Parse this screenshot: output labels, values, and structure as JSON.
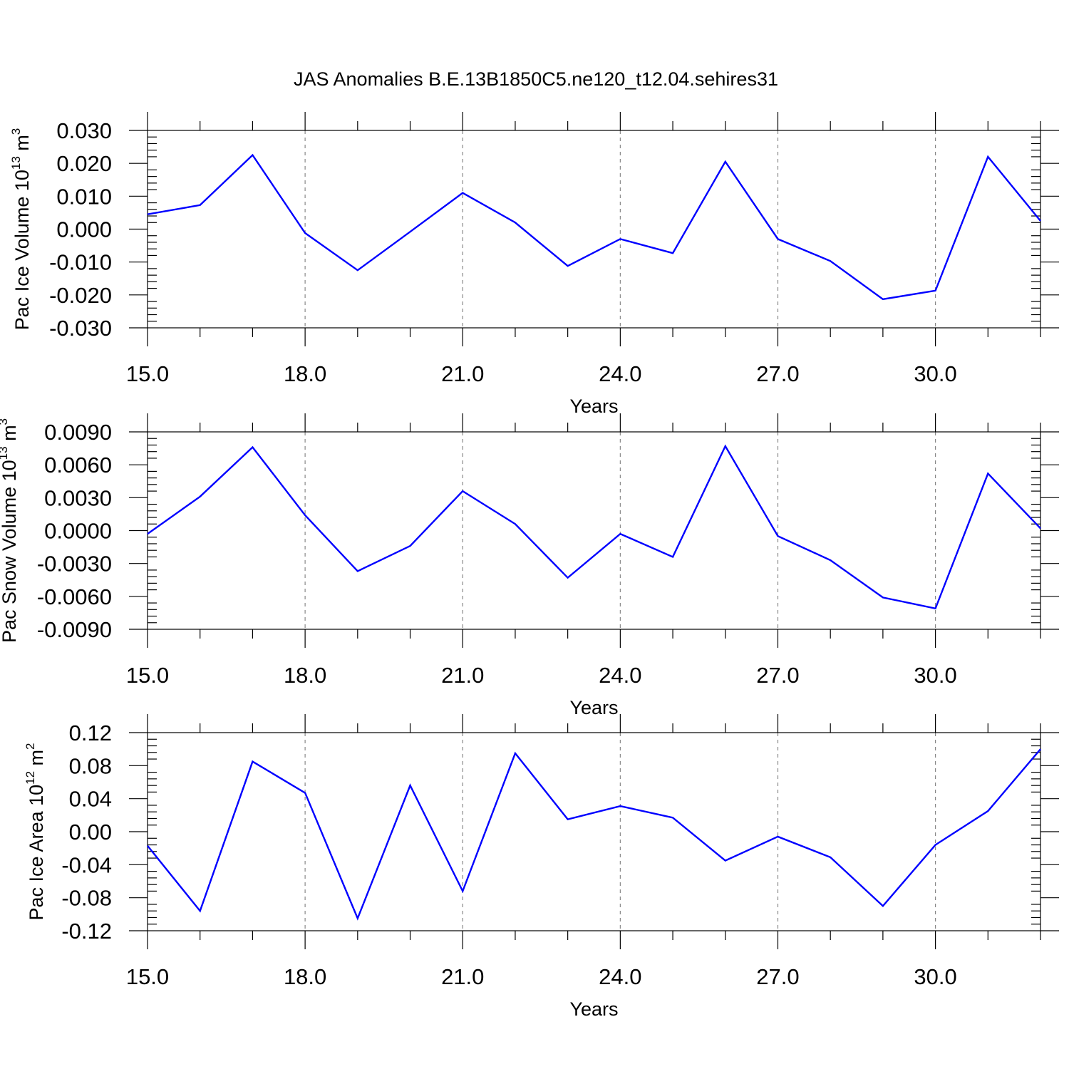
{
  "title": "JAS Anomalies B.E.13B1850C5.ne120_t12.04.sehires31",
  "colors": {
    "line": "#0000ff",
    "grid": "#888888",
    "axes": "#000000"
  },
  "chart_data": [
    {
      "type": "line",
      "id": "ice-volume",
      "ylabel": {
        "text": "Pac Ice Volume 10",
        "sup1": "13",
        "mid": " m",
        "sup2": "3"
      },
      "xlabel": "Years",
      "xlim": [
        15,
        32
      ],
      "ylim": [
        -0.03,
        0.03
      ],
      "x_ticks": [
        "15.0",
        "18.0",
        "21.0",
        "24.0",
        "27.0",
        "30.0"
      ],
      "y_ticks": [
        "-0.030",
        "-0.020",
        "-0.010",
        "0.000",
        "0.010",
        "0.020",
        "0.030"
      ],
      "grid": "vertical dashed at major x ticks",
      "series": [
        {
          "x": [
            15,
            16,
            17,
            18,
            19,
            20,
            21,
            22,
            23,
            24,
            25,
            26,
            27,
            28,
            29,
            30,
            31,
            32
          ],
          "values": [
            0.0045,
            0.0073,
            0.0225,
            -0.0012,
            -0.0125,
            -0.0008,
            0.011,
            0.002,
            -0.0112,
            -0.003,
            -0.0073,
            0.0205,
            -0.003,
            -0.0097,
            -0.0213,
            -0.0187,
            0.022,
            0.0025
          ]
        }
      ]
    },
    {
      "type": "line",
      "id": "snow-volume",
      "ylabel": {
        "text": "Pac Snow Volume 10",
        "sup1": "13",
        "mid": " m",
        "sup2": "3"
      },
      "xlabel": "Years",
      "xlim": [
        15,
        32
      ],
      "ylim": [
        -0.009,
        0.009
      ],
      "x_ticks": [
        "15.0",
        "18.0",
        "21.0",
        "24.0",
        "27.0",
        "30.0"
      ],
      "y_ticks": [
        "-0.0090",
        "-0.0060",
        "-0.0030",
        "0.0000",
        "0.0030",
        "0.0060",
        "0.0090"
      ],
      "grid": "vertical dashed at major x ticks",
      "series": [
        {
          "x": [
            15,
            16,
            17,
            18,
            19,
            20,
            21,
            22,
            23,
            24,
            25,
            26,
            27,
            28,
            29,
            30,
            31,
            32
          ],
          "values": [
            -0.0003,
            0.0031,
            0.0076,
            0.0014,
            -0.0037,
            -0.0014,
            0.0036,
            0.0006,
            -0.0043,
            -0.0003,
            -0.0024,
            0.0077,
            -0.0005,
            -0.0027,
            -0.0061,
            -0.0071,
            0.0052,
            0.0002
          ]
        }
      ]
    },
    {
      "type": "line",
      "id": "ice-area",
      "ylabel": {
        "text": "Pac Ice Area 10",
        "sup1": "12",
        "mid": " m",
        "sup2": "2"
      },
      "xlabel": "Years",
      "xlim": [
        15,
        32
      ],
      "ylim": [
        -0.12,
        0.12
      ],
      "x_ticks": [
        "15.0",
        "18.0",
        "21.0",
        "24.0",
        "27.0",
        "30.0"
      ],
      "y_ticks": [
        "-0.12",
        "-0.08",
        "-0.04",
        "0.00",
        "0.04",
        "0.08",
        "0.12"
      ],
      "grid": "vertical dashed at major x ticks",
      "series": [
        {
          "x": [
            15,
            16,
            17,
            18,
            19,
            20,
            21,
            22,
            23,
            24,
            25,
            26,
            27,
            28,
            29,
            30,
            31,
            32
          ],
          "values": [
            -0.017,
            -0.096,
            0.085,
            0.047,
            -0.105,
            0.056,
            -0.072,
            0.095,
            0.015,
            0.031,
            0.017,
            -0.035,
            -0.006,
            -0.031,
            -0.09,
            -0.016,
            0.025,
            0.1
          ]
        }
      ]
    }
  ]
}
